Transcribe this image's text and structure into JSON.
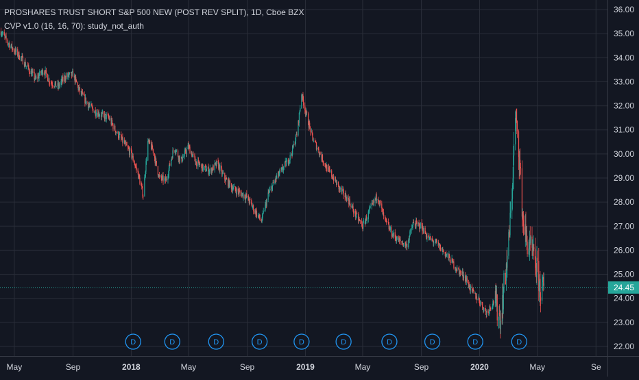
{
  "legend": {
    "title": "PROSHARES TRUST SHORT S&P 500 NEW (POST REV SPLIT), 1D, Cboe BZX",
    "indicator": "CVP v1.0 (16, 16, 70): study_not_auth"
  },
  "colors": {
    "background": "#131722",
    "grid": "#2a2e39",
    "up": "#26a69a",
    "down": "#ef5350",
    "axis_text": "#d1d4dc",
    "price_line": "#26a69a",
    "dividend": "#2196f3"
  },
  "chart_data": {
    "type": "candlestick",
    "xlabel": "",
    "ylabel": "",
    "ylim": [
      21.6,
      36.4
    ],
    "x_ticks": [
      "May",
      "Sep",
      "2018",
      "May",
      "Sep",
      "2019",
      "May",
      "Sep",
      "2020",
      "May",
      "Se"
    ],
    "x_tick_dates": [
      "2017-05",
      "2017-09",
      "2018-01",
      "2018-05",
      "2018-09",
      "2019-01",
      "2019-05",
      "2019-09",
      "2020-01",
      "2020-05",
      "2020-09"
    ],
    "y_ticks": [
      "22.00",
      "23.00",
      "24.00",
      "25.00",
      "26.00",
      "27.00",
      "28.00",
      "29.00",
      "30.00",
      "31.00",
      "32.00",
      "33.00",
      "34.00",
      "35.00",
      "36.00"
    ],
    "x_range": [
      "2017-04-01",
      "2020-09-25"
    ],
    "last_price": "24.45",
    "dividend_marker": "D",
    "dividend_dates": [
      "2018-01-05",
      "2018-03-28",
      "2018-06-28",
      "2018-09-27",
      "2018-12-24",
      "2019-03-22",
      "2019-06-26",
      "2019-09-24",
      "2019-12-23",
      "2020-03-24"
    ],
    "series": [
      {
        "values": [
          [
            "2017-04-03",
            35.1
          ],
          [
            "2017-04-15",
            34.7
          ],
          [
            "2017-05-01",
            34.3
          ],
          [
            "2017-05-15",
            34.0
          ],
          [
            "2017-06-01",
            33.5
          ],
          [
            "2017-06-15",
            33.1
          ],
          [
            "2017-07-01",
            33.5
          ],
          [
            "2017-07-15",
            33.0
          ],
          [
            "2017-08-01",
            32.8
          ],
          [
            "2017-08-15",
            33.2
          ],
          [
            "2017-09-01",
            33.3
          ],
          [
            "2017-09-15",
            32.6
          ],
          [
            "2017-10-01",
            32.1
          ],
          [
            "2017-10-15",
            31.8
          ],
          [
            "2017-11-01",
            31.6
          ],
          [
            "2017-11-15",
            31.5
          ],
          [
            "2017-12-01",
            30.9
          ],
          [
            "2017-12-15",
            30.5
          ],
          [
            "2018-01-01",
            30.0
          ],
          [
            "2018-01-15",
            29.2
          ],
          [
            "2018-01-26",
            28.3
          ],
          [
            "2018-02-05",
            30.5
          ],
          [
            "2018-02-15",
            30.2
          ],
          [
            "2018-03-01",
            29.0
          ],
          [
            "2018-03-15",
            28.9
          ],
          [
            "2018-04-01",
            30.3
          ],
          [
            "2018-04-15",
            29.7
          ],
          [
            "2018-05-01",
            30.3
          ],
          [
            "2018-05-15",
            29.7
          ],
          [
            "2018-06-01",
            29.4
          ],
          [
            "2018-06-15",
            29.3
          ],
          [
            "2018-07-01",
            29.6
          ],
          [
            "2018-07-15",
            29.0
          ],
          [
            "2018-08-01",
            28.6
          ],
          [
            "2018-08-15",
            28.4
          ],
          [
            "2018-09-01",
            28.2
          ],
          [
            "2018-09-15",
            27.7
          ],
          [
            "2018-10-01",
            27.2
          ],
          [
            "2018-10-15",
            28.3
          ],
          [
            "2018-11-01",
            29.0
          ],
          [
            "2018-11-15",
            29.4
          ],
          [
            "2018-12-01",
            29.9
          ],
          [
            "2018-12-15",
            30.9
          ],
          [
            "2018-12-24",
            32.5
          ],
          [
            "2019-01-01",
            31.8
          ],
          [
            "2019-01-15",
            30.7
          ],
          [
            "2019-02-01",
            30.0
          ],
          [
            "2019-02-15",
            29.4
          ],
          [
            "2019-03-01",
            29.0
          ],
          [
            "2019-03-15",
            28.5
          ],
          [
            "2019-04-01",
            28.1
          ],
          [
            "2019-04-15",
            27.5
          ],
          [
            "2019-05-01",
            27.0
          ],
          [
            "2019-05-15",
            27.6
          ],
          [
            "2019-06-01",
            28.3
          ],
          [
            "2019-06-15",
            27.3
          ],
          [
            "2019-07-01",
            26.7
          ],
          [
            "2019-07-15",
            26.4
          ],
          [
            "2019-08-01",
            26.2
          ],
          [
            "2019-08-15",
            27.1
          ],
          [
            "2019-09-01",
            27.0
          ],
          [
            "2019-09-15",
            26.5
          ],
          [
            "2019-10-01",
            26.3
          ],
          [
            "2019-10-15",
            26.0
          ],
          [
            "2019-11-01",
            25.6
          ],
          [
            "2019-11-15",
            25.2
          ],
          [
            "2019-12-01",
            24.9
          ],
          [
            "2019-12-15",
            24.3
          ],
          [
            "2020-01-01",
            23.9
          ],
          [
            "2020-01-15",
            23.4
          ],
          [
            "2020-02-01",
            23.9
          ],
          [
            "2020-02-15",
            23.1
          ],
          [
            "2020-02-21",
            24.5
          ],
          [
            "2020-03-01",
            26.0
          ],
          [
            "2020-03-08",
            28.0
          ],
          [
            "2020-03-16",
            31.5
          ],
          [
            "2020-03-23",
            30.3
          ],
          [
            "2020-04-01",
            27.2
          ],
          [
            "2020-04-10",
            26.3
          ],
          [
            "2020-04-20",
            25.9
          ],
          [
            "2020-05-01",
            25.1
          ],
          [
            "2020-05-08",
            24.3
          ],
          [
            "2020-05-15",
            24.45
          ]
        ]
      }
    ]
  }
}
